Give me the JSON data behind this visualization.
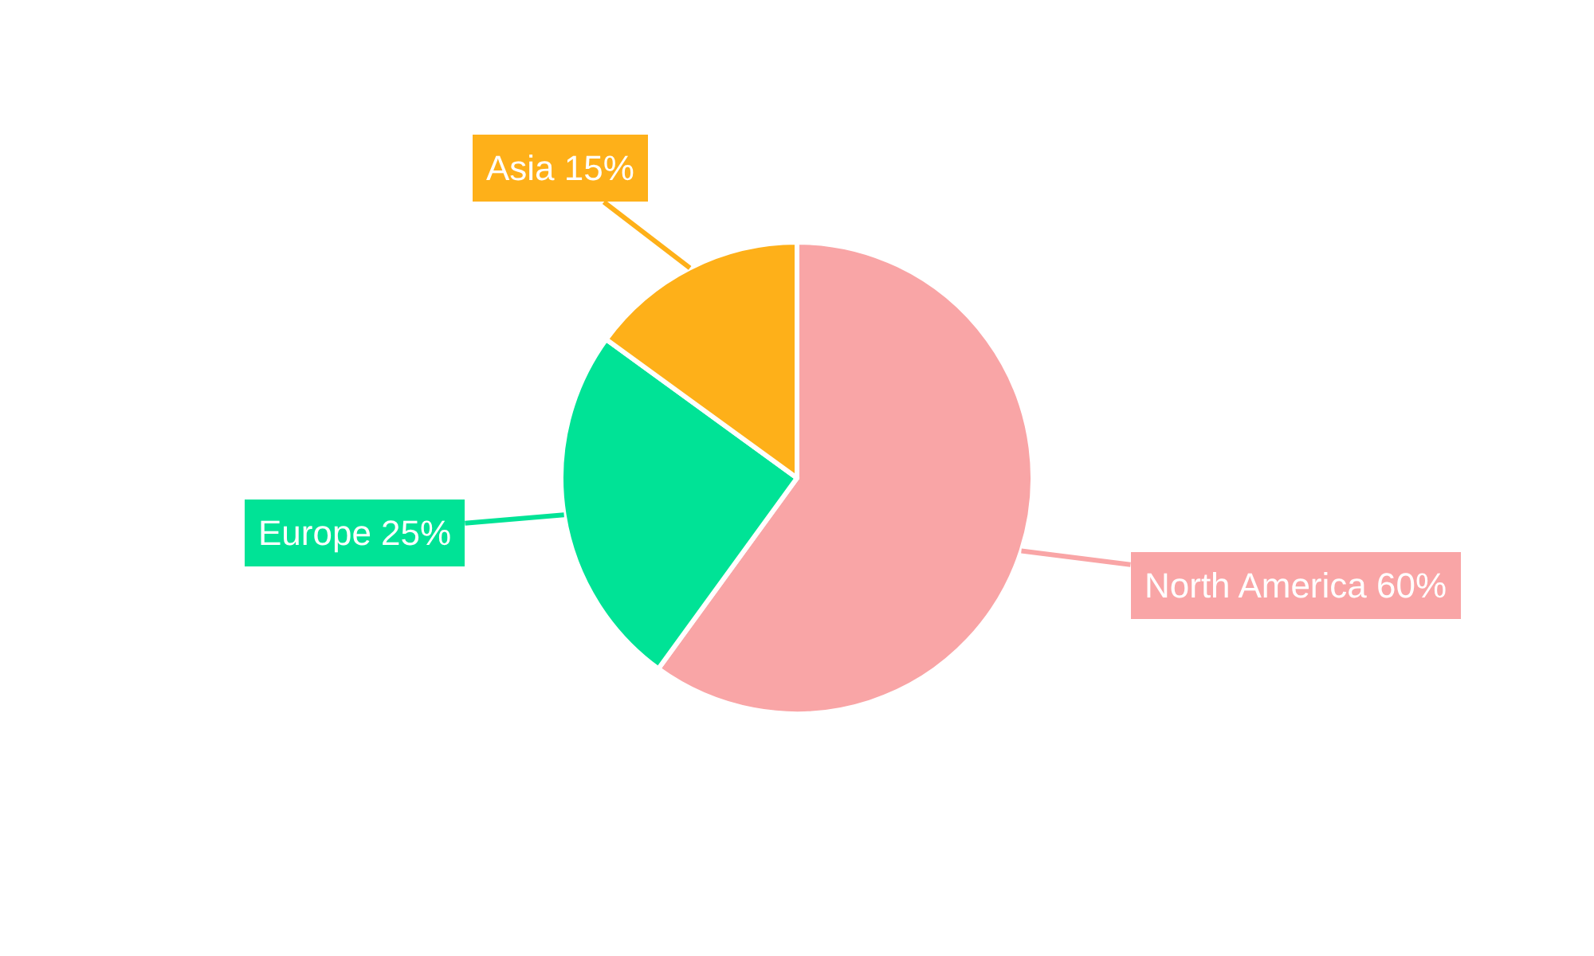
{
  "chart_data": {
    "type": "pie",
    "categories": [
      "North America",
      "Europe",
      "Asia"
    ],
    "values": [
      60,
      25,
      15
    ],
    "value_labels": [
      "60%",
      "25%",
      "15%"
    ],
    "colors": [
      "#f9a5a6",
      "#00e396",
      "#feb019"
    ],
    "legend": false
  }
}
